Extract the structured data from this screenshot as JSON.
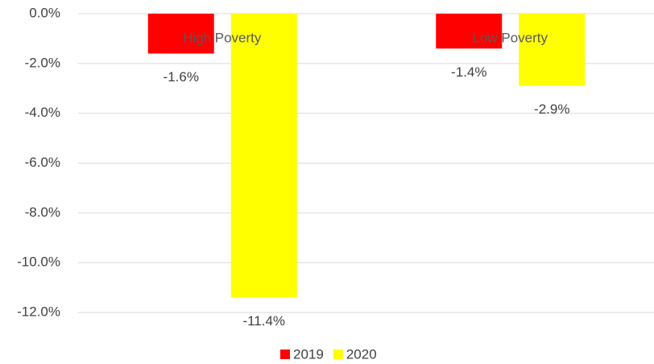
{
  "chart_data": {
    "type": "bar",
    "categories": [
      "High Poverty",
      "Low Poverty"
    ],
    "series": [
      {
        "name": "2019",
        "color": "#ff0000",
        "values": [
          -1.6,
          -1.4
        ],
        "value_labels": [
          "-1.6%",
          "-1.4%"
        ]
      },
      {
        "name": "2020",
        "color": "#ffff00",
        "values": [
          -11.4,
          -2.9
        ],
        "value_labels": [
          "-11.4%",
          "-2.9%"
        ]
      }
    ],
    "ylim": [
      -12,
      0
    ],
    "yticks": [
      {
        "value": 0,
        "label": "0.0%"
      },
      {
        "value": -2,
        "label": "-2.0%"
      },
      {
        "value": -4,
        "label": "-4.0%"
      },
      {
        "value": -6,
        "label": "-6.0%"
      },
      {
        "value": -8,
        "label": "-8.0%"
      },
      {
        "value": -10,
        "label": "-10.0%"
      },
      {
        "value": -12,
        "label": "-12.0%"
      }
    ],
    "grid": true,
    "legend": "bottom"
  }
}
